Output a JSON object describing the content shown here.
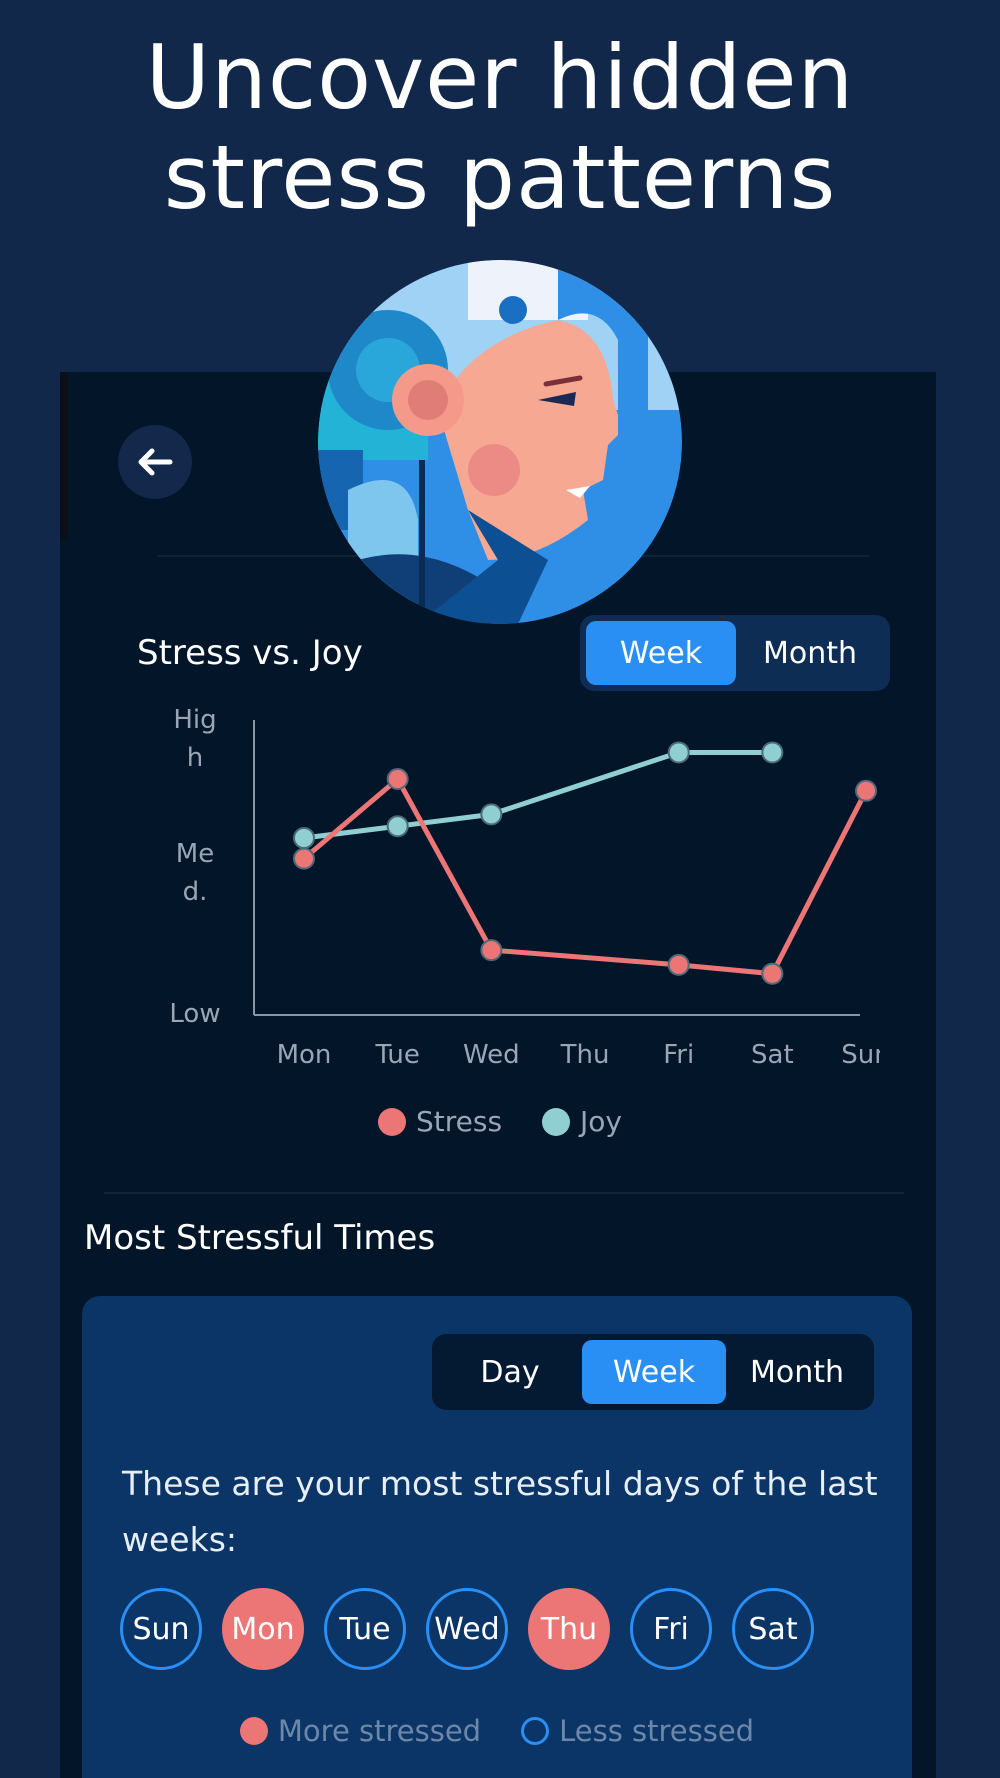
{
  "headline": {
    "line1": "Uncover hidden",
    "line2": "stress patterns"
  },
  "colors": {
    "background": "#12284a",
    "panel": "#031529",
    "accent": "#2a8ff5",
    "stress": "#ec7676",
    "joy": "#8fcfd1",
    "card": "#0b3566"
  },
  "header": {
    "back_icon": "arrow-left-icon"
  },
  "stress_joy": {
    "title": "Stress vs. Joy",
    "range_options": [
      {
        "label": "Week",
        "active": true
      },
      {
        "label": "Month",
        "active": false
      }
    ]
  },
  "chart_data": {
    "type": "line",
    "categories": [
      "Mon",
      "Tue",
      "Wed",
      "Thu",
      "Fri",
      "Sat",
      "Sun"
    ],
    "y_tick_labels": [
      "Hig h",
      "Me d.",
      "Low"
    ],
    "ylim": [
      0,
      100
    ],
    "grid": false,
    "legend_position": "bottom-center",
    "series": [
      {
        "name": "Stress",
        "color": "#ec7676",
        "values": [
          53,
          80,
          22,
          null,
          17,
          14,
          76
        ]
      },
      {
        "name": "Joy",
        "color": "#8fcfd1",
        "values": [
          60,
          64,
          68,
          null,
          89,
          89,
          null
        ]
      }
    ]
  },
  "stressful_times": {
    "title": "Most Stressful Times",
    "range_options": [
      {
        "label": "Day",
        "active": false
      },
      {
        "label": "Week",
        "active": true
      },
      {
        "label": "Month",
        "active": false
      }
    ],
    "description": "These are your most stressful days of the last weeks:",
    "days": [
      {
        "label": "Sun",
        "stressed": false
      },
      {
        "label": "Mon",
        "stressed": true
      },
      {
        "label": "Tue",
        "stressed": false
      },
      {
        "label": "Wed",
        "stressed": false
      },
      {
        "label": "Thu",
        "stressed": true
      },
      {
        "label": "Fri",
        "stressed": false
      },
      {
        "label": "Sat",
        "stressed": false
      }
    ],
    "legend": {
      "more": "More stressed",
      "less": "Less stressed"
    }
  }
}
